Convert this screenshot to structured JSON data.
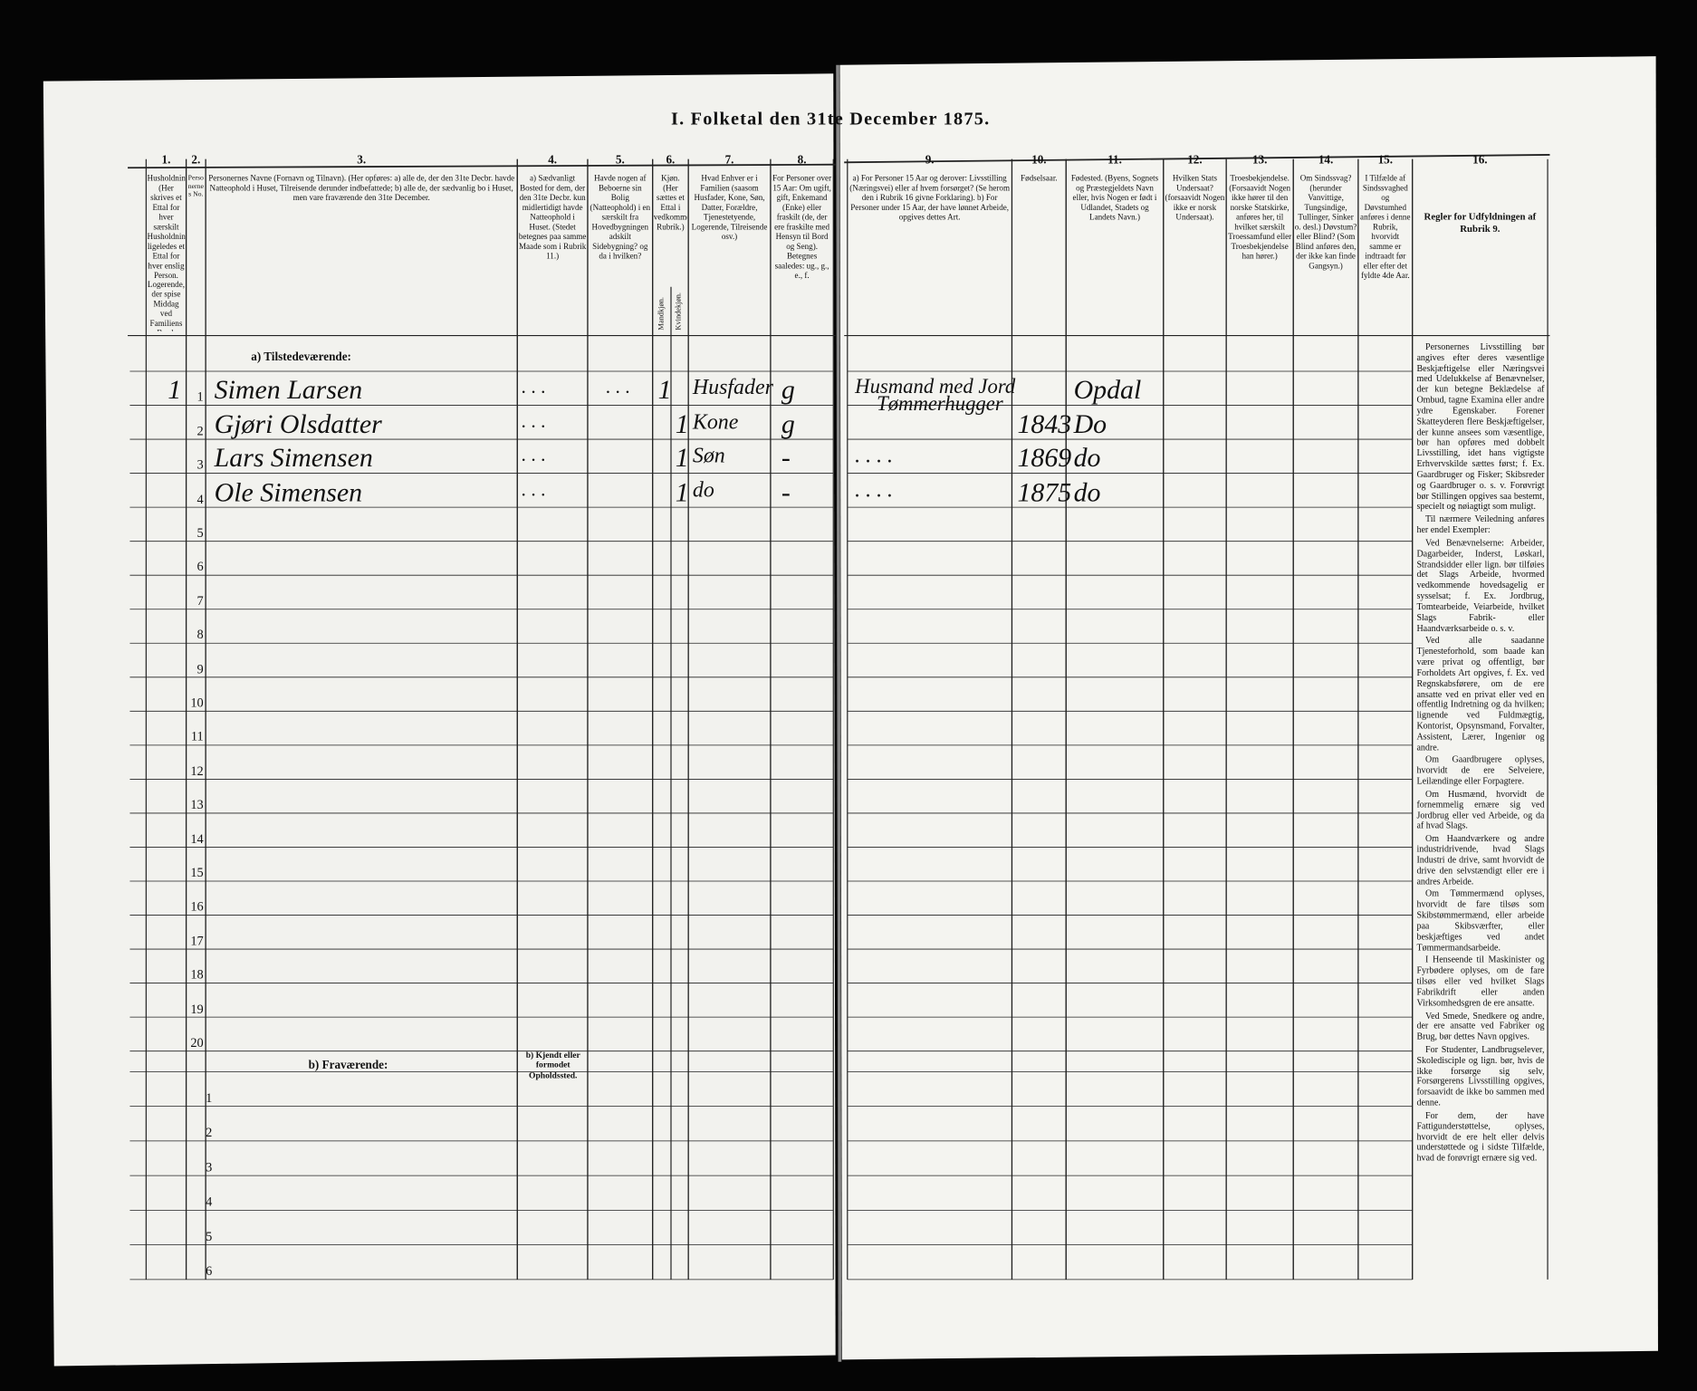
{
  "title": "I. Folketal den 31te December 1875.",
  "columns": [
    {
      "number": "1.",
      "header": "Husholdninger. (Her skrives et Ettal for hver særskilt Husholdning; ligeledes et Ettal for hver enslig Person. Logerende, der spise Middag ved Familiens Bord, regnes ikke som enslige.)"
    },
    {
      "number": "2.",
      "header": "Personernes No."
    },
    {
      "number": "3.",
      "header": "Personernes Navne (Fornavn og Tilnavn). (Her opføres: a) alle de, der den 31te Decbr. havde Natteophold i Huset, Tilreisende derunder indbefattede; b) alle de, der sædvanlig bo i Huset, men vare fraværende den 31te December."
    },
    {
      "number": "4.",
      "header": "a) Sædvanligt Bosted for dem, der den 31te Decbr. kun midlertidigt havde Natteophold i Huset. (Stedet betegnes paa samme Maade som i Rubrik 11.)"
    },
    {
      "number": "5.",
      "header": "Havde nogen af Beboerne sin Bolig (Natteophold) i en særskilt fra Hovedbygningen adskilt Sidebygning? og da i hvilken?"
    },
    {
      "number": "6.",
      "header": "Kjøn. (Her sættes et Ettal i vedkommende Rubrik.)"
    },
    {
      "number": "7.",
      "header": "Hvad Enhver er i Familien (saasom Husfader, Kone, Søn, Datter, Forældre, Tjenestetyende, Logerende, Tilreisende osv.)"
    },
    {
      "number": "8.",
      "header": "For Personer over 15 Aar: Om ugift, gift, Enkemand (Enke) eller fraskilt (de, der ere fraskilte med Hensyn til Bord og Seng). Betegnes saaledes: ug., g., e., f."
    },
    {
      "number": "9.",
      "header": "a) For Personer 15 Aar og derover: Livsstilling (Næringsvei) eller af hvem forsørget? (Se herom den i Rubrik 16 givne Forklaring). b) For Personer under 15 Aar, der have lønnet Arbeide, opgives dettes Art."
    },
    {
      "number": "10.",
      "header": "Fødselsaar."
    },
    {
      "number": "11.",
      "header": "Fødested. (Byens, Sognets og Præstegjeldets Navn eller, hvis Nogen er født i Udlandet, Stadets og Landets Navn.)"
    },
    {
      "number": "12.",
      "header": "Hvilken Stats Undersaat? (forsaavidt Nogen ikke er norsk Undersaat)."
    },
    {
      "number": "13.",
      "header": "Troesbekjendelse. (Forsaavidt Nogen ikke hører til den norske Statskirke, anføres her, til hvilket særskilt Troessamfund eller Troesbekjendelse han hører.)"
    },
    {
      "number": "14.",
      "header": "Om Sindssvag? (herunder Vanvittige, Tungsindige, Tullinger, Sinker o. desl.) Døvstum? eller Blind? (Som Blind anføres den, der ikke kan finde Gangsyn.)"
    },
    {
      "number": "15.",
      "header": "I Tilfælde af Sindssvaghed og Døvstumhed anføres i denne Rubrik, hvorvidt samme er indtraadt før eller efter det fyldte 4de Aar."
    },
    {
      "number": "16.",
      "header": "Regler for Udfyldningen af Rubrik 9."
    }
  ],
  "sex_subheaders": [
    "Mandkjøn.",
    "Kvindekjøn."
  ],
  "present_label": "a) Tilstedeværende:",
  "absent_label": "b) Fraværende:",
  "absent_place_label": "b) Kjendt eller formodet Opholdssted.",
  "present_rows": [
    "1",
    "2",
    "3",
    "4",
    "5",
    "6",
    "7",
    "8",
    "9",
    "10",
    "11",
    "12",
    "13",
    "14",
    "15",
    "16",
    "17",
    "18",
    "19",
    "20"
  ],
  "absent_rows": [
    "1",
    "2",
    "3",
    "4",
    "5",
    "6"
  ],
  "entries": [
    {
      "household": "1",
      "name": "Simen Larsen",
      "residence": ". . .",
      "outbuilding": ". . .",
      "male": "1",
      "female": null,
      "role": "Husfader",
      "marital": "g",
      "occupation": "Husmand med Jord",
      "occupation2": "Tømmerhugger",
      "birth_year": null,
      "birthplace": "Opdal"
    },
    {
      "household": null,
      "name": "Gjøri Olsdatter",
      "residence": ". . .",
      "outbuilding": null,
      "male": null,
      "female": "1",
      "role": "Kone",
      "marital": "g",
      "occupation": null,
      "occupation2": null,
      "birth_year": "1843",
      "birthplace": "Do"
    },
    {
      "household": null,
      "name": "Lars Simensen",
      "residence": ". . .",
      "outbuilding": null,
      "male": null,
      "female": "1",
      "role": "Søn",
      "marital": "-",
      "occupation": ". . . .",
      "occupation2": null,
      "birth_year": "1869",
      "birthplace": "do"
    },
    {
      "household": null,
      "name": "Ole Simensen",
      "residence": ". . .",
      "outbuilding": null,
      "male": null,
      "female": "1",
      "role": "do",
      "marital": "-",
      "occupation": ". . . .",
      "occupation2": null,
      "birth_year": "1875",
      "birthplace": "do"
    }
  ],
  "instructions": [
    "Personernes Livsstilling bør angives efter deres væsentlige Beskjæftigelse eller Næringsvei med Udelukkelse af Benævnelser, der kun betegne Beklædelse af Ombud, tagne Examina eller andre ydre Egenskaber. Forener Skatteyderen flere Beskjæftigelser, der kunne ansees som væsentlige, bør han opføres med dobbelt Livsstilling, idet hans vigtigste Erhvervskilde sættes først; f. Ex. Gaardbruger og Fisker; Skibsreder og Gaardbruger o. s. v. Forøvrigt bør Stillingen opgives saa bestemt, specielt og nøiagtigt som muligt.",
    "Til nærmere Veiledning anføres her endel Exempler:",
    "Ved Benævnelserne: Arbeider, Dagarbeider, Inderst, Løskarl, Strandsidder eller lign. bør tilføies det Slags Arbeide, hvormed vedkommende hovedsagelig er sysselsat; f. Ex. Jordbrug, Tomtearbeide, Veiarbeide, hvilket Slags Fabrik- eller Haandværksarbeide o. s. v.",
    "Ved alle saadanne Tjenesteforhold, som baade kan være privat og offentligt, bør Forholdets Art opgives, f. Ex. ved Regnskabsførere, om de ere ansatte ved en privat eller ved en offentlig Indretning og da hvilken; lignende ved Fuldmægtig, Kontorist, Opsynsmand, Forvalter, Assistent, Lærer, Ingeniør og andre.",
    "Om Gaardbrugere oplyses, hvorvidt de ere Selveiere, Leilændinge eller Forpagtere.",
    "Om Husmænd, hvorvidt de fornemmelig ernære sig ved Jordbrug eller ved Arbeide, og da af hvad Slags.",
    "Om Haandværkere og andre industridrivende, hvad Slags Industri de drive, samt hvorvidt de drive den selvstændigt eller ere i andres Arbeide.",
    "Om Tømmermænd oplyses, hvorvidt de fare tilsøs som Skibstømmermænd, eller arbeide paa Skibsværfter, eller beskjæftiges ved andet Tømmermandsarbeide.",
    "I Henseende til Maskinister og Fyrbødere oplyses, om de fare tilsøs eller ved hvilket Slags Fabrikdrift eller anden Virksomhedsgren de ere ansatte.",
    "Ved Smede, Snedkere og andre, der ere ansatte ved Fabriker og Brug, bør dettes Navn opgives.",
    "For Studenter, Landbrugselever, Skoledisciple og lign. bør, hvis de ikke forsørge sig selv, Forsørgerens Livsstilling opgives, forsaavidt de ikke bo sammen med denne.",
    "For dem, der have Fattigunderstøttelse, oplyses, hvorvidt de ere helt eller delvis understøttede og i sidste Tilfælde, hvad de forøvrigt ernære sig ved."
  ]
}
